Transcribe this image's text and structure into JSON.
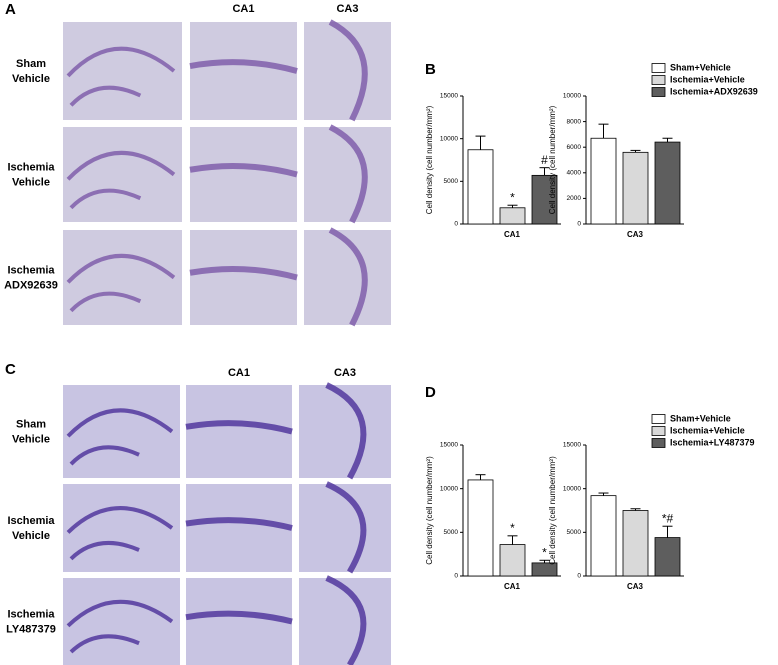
{
  "figure": {
    "panel_labels": [
      "A",
      "B",
      "C",
      "D"
    ],
    "image_panels": [
      {
        "column_headers": [
          "CA1",
          "CA3"
        ],
        "row_labels": [
          [
            "Sham",
            "Vehicle"
          ],
          [
            "Ischemia",
            "Vehicle"
          ],
          [
            "Ischemia",
            "ADX92639"
          ]
        ]
      },
      {
        "column_headers": [
          "CA1",
          "CA3"
        ],
        "row_labels": [
          [
            "Sham",
            "Vehicle"
          ],
          [
            "Ischemia",
            "Vehicle"
          ],
          [
            "Ischemia",
            "LY487379"
          ]
        ]
      }
    ]
  },
  "chart_data": [
    {
      "type": "bar",
      "y_label": "Cell density (cell number/mm²)",
      "categories": [
        "CA1",
        "CA3"
      ],
      "ylims": [
        [
          0,
          15000
        ],
        [
          0,
          10000
        ]
      ],
      "yticks": [
        [
          0,
          5000,
          10000,
          15000
        ],
        [
          0,
          2000,
          4000,
          6000,
          8000,
          10000
        ]
      ],
      "series": [
        {
          "name": "Sham+Vehicle",
          "color": "#ffffff",
          "values": [
            8700,
            6700
          ],
          "errors": [
            1600,
            1100
          ],
          "annotations": [
            null,
            null
          ]
        },
        {
          "name": "Ischemia+Vehicle",
          "color": "#d9d9d9",
          "values": [
            1900,
            5600
          ],
          "errors": [
            300,
            150
          ],
          "annotations": [
            "*",
            null
          ]
        },
        {
          "name": "Ischemia+ADX92639",
          "color": "#5e5e5e",
          "values": [
            5700,
            6400
          ],
          "errors": [
            900,
            300
          ],
          "annotations": [
            "#",
            null
          ]
        }
      ]
    },
    {
      "type": "bar",
      "y_label": "Cell density (cell number/mm²)",
      "categories": [
        "CA1",
        "CA3"
      ],
      "ylims": [
        [
          0,
          15000
        ],
        [
          0,
          15000
        ]
      ],
      "yticks": [
        [
          0,
          5000,
          10000,
          15000
        ],
        [
          0,
          5000,
          10000,
          15000
        ]
      ],
      "series": [
        {
          "name": "Sham+Vehicle",
          "color": "#ffffff",
          "values": [
            11000,
            9200
          ],
          "errors": [
            600,
            300
          ],
          "annotations": [
            null,
            null
          ]
        },
        {
          "name": "Ischemia+Vehicle",
          "color": "#d9d9d9",
          "values": [
            3600,
            7500
          ],
          "errors": [
            1000,
            200
          ],
          "annotations": [
            "*",
            null
          ]
        },
        {
          "name": "Ischemia+LY487379",
          "color": "#5e5e5e",
          "values": [
            1500,
            4400
          ],
          "errors": [
            300,
            1300
          ],
          "annotations": [
            "*",
            "*#"
          ]
        }
      ]
    }
  ]
}
